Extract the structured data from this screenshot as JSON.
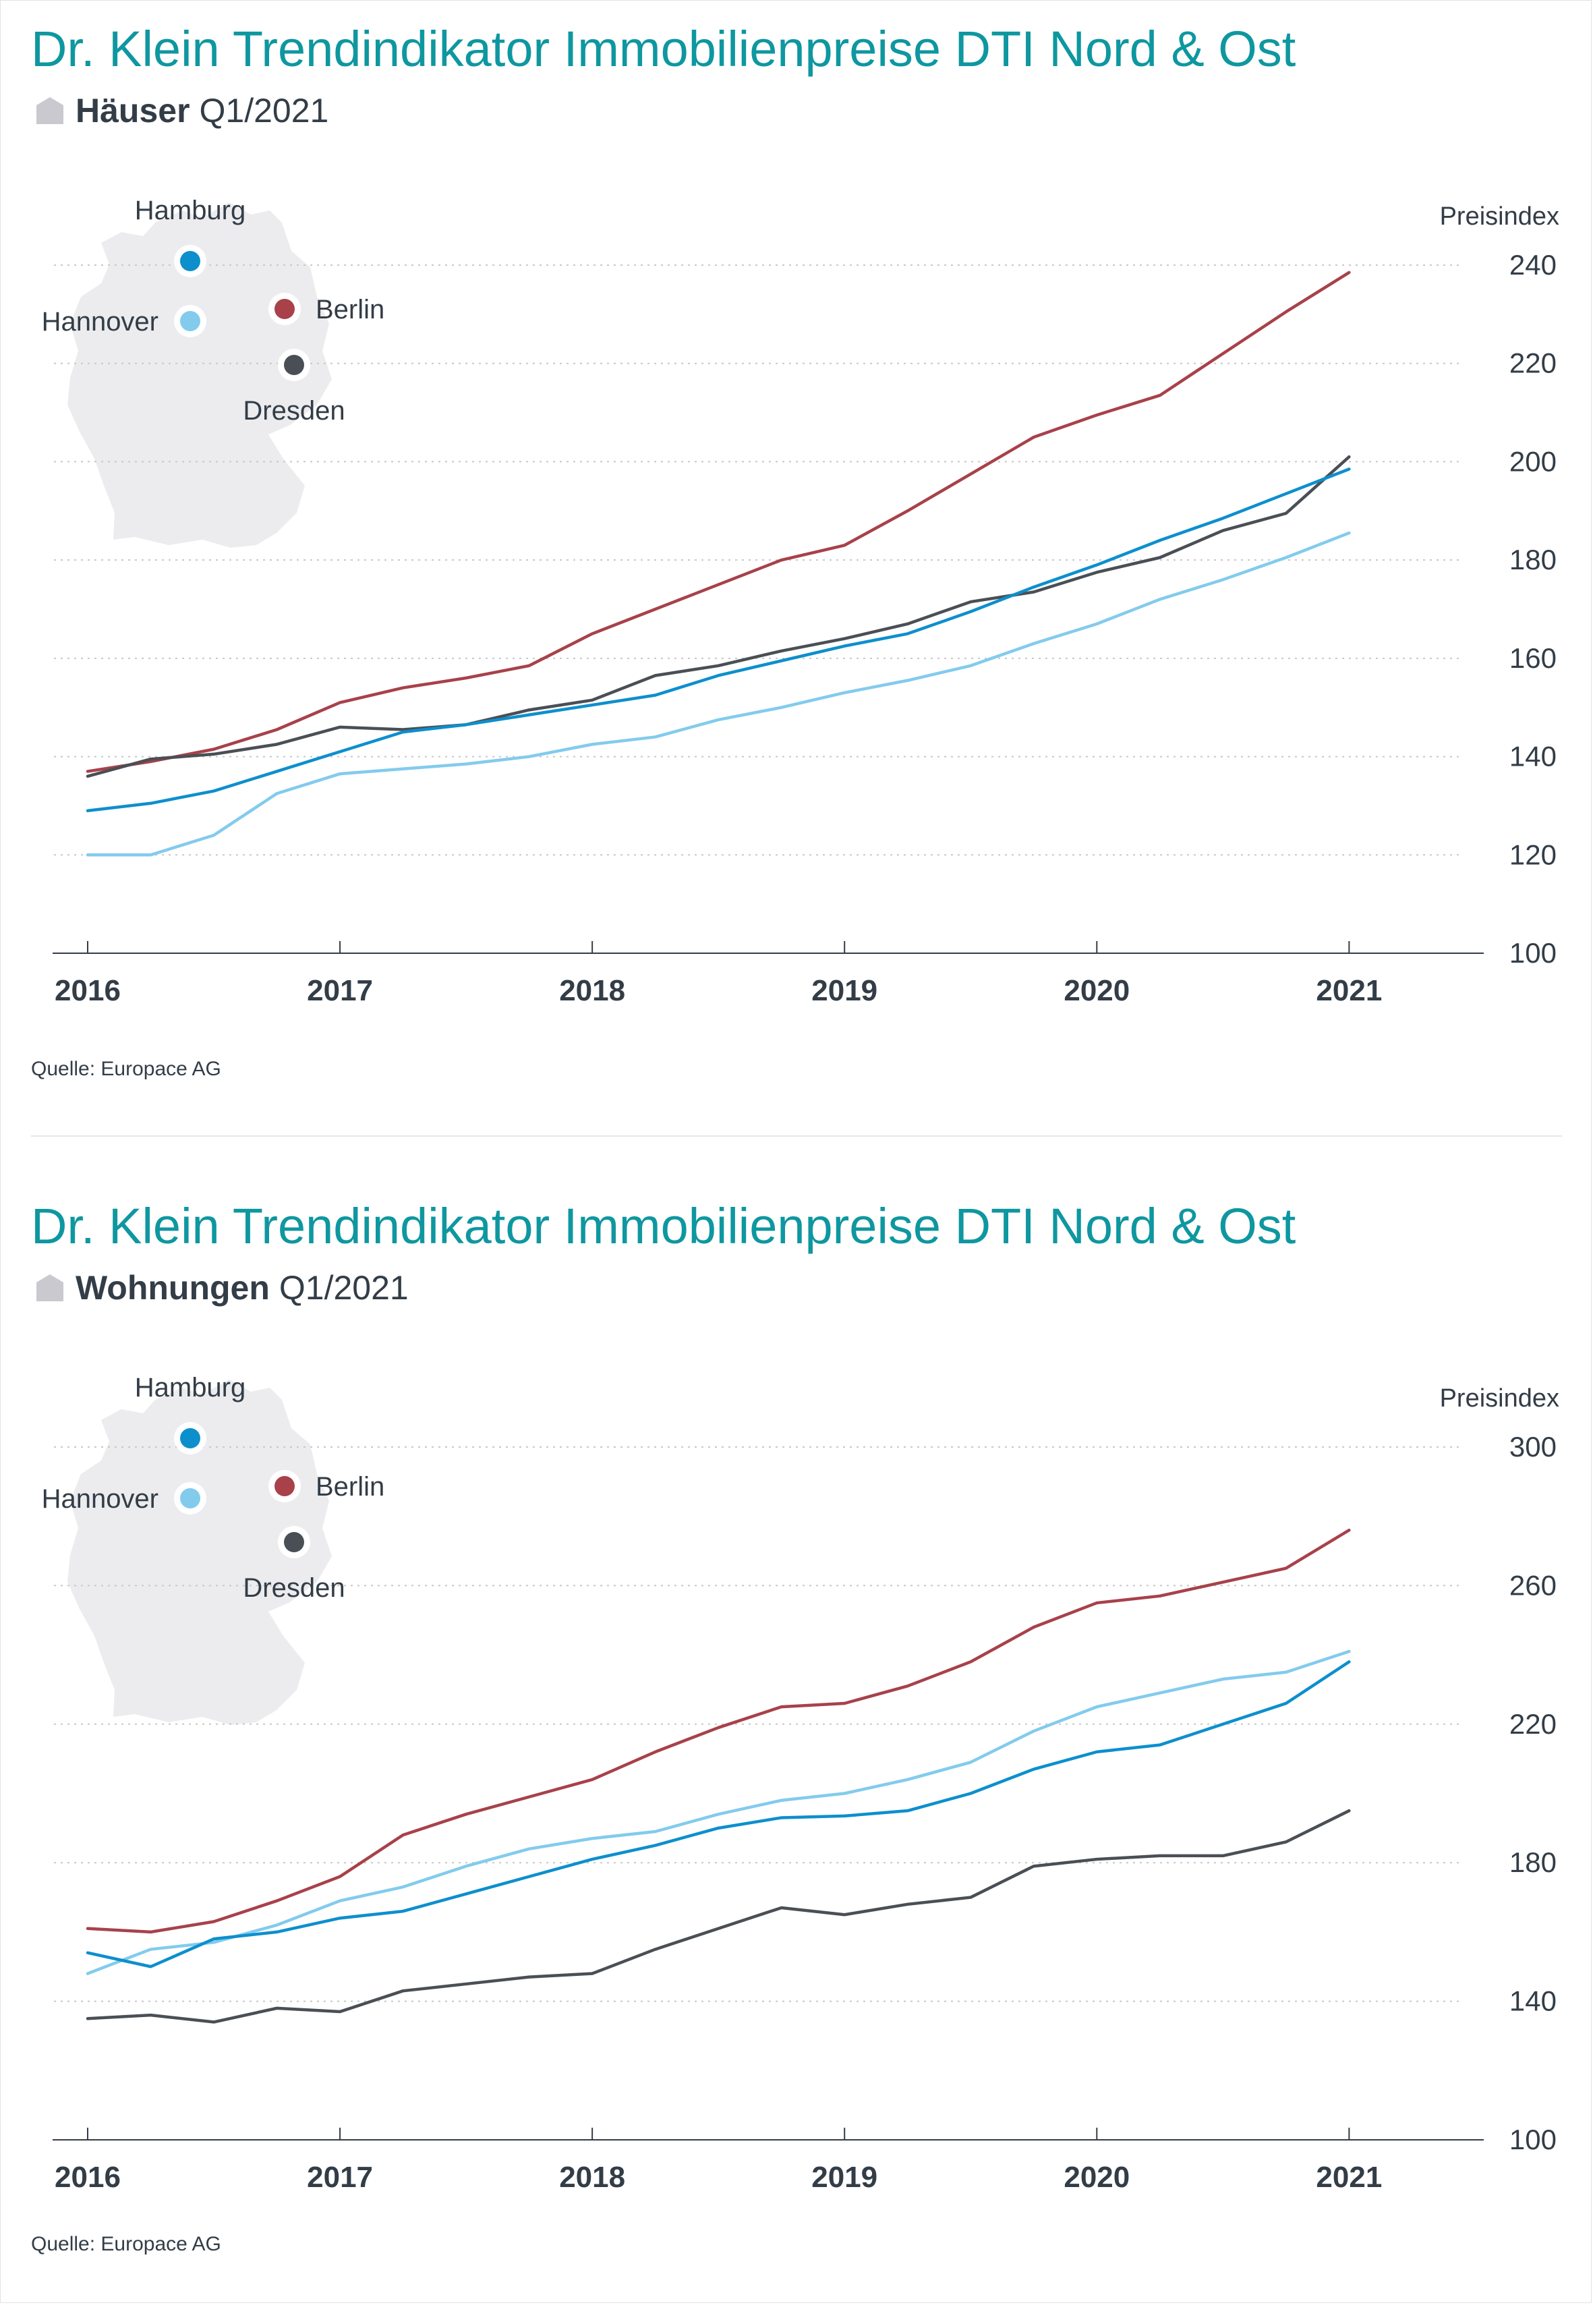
{
  "chart_data": [
    {
      "type": "line",
      "title": "Dr. Klein Trendindikator Immobilienpreise DTI Nord & Ost",
      "subtitle_kind": "Häuser",
      "subtitle_period": "Q1/2021",
      "ylabel": "Preisindex",
      "xlabel": "",
      "ylim": [
        100,
        240
      ],
      "yticks": [
        100,
        120,
        140,
        160,
        180,
        200,
        220,
        240
      ],
      "xlim": [
        2016,
        2021.4
      ],
      "xticks": [
        2016,
        2017,
        2018,
        2019,
        2020,
        2021
      ],
      "x": [
        2016.0,
        2016.25,
        2016.5,
        2016.75,
        2017.0,
        2017.25,
        2017.5,
        2017.75,
        2018.0,
        2018.25,
        2018.5,
        2018.75,
        2019.0,
        2019.25,
        2019.5,
        2019.75,
        2020.0,
        2020.25,
        2020.5,
        2020.75,
        2021.0,
        2021.25
      ],
      "series": [
        {
          "name": "Berlin",
          "color": "#a8414a",
          "values": [
            137,
            139,
            141.5,
            145.5,
            151,
            154,
            156,
            158.5,
            165,
            170,
            175,
            180,
            183,
            190,
            197.5,
            205,
            209.5,
            213.5,
            222,
            230.5,
            238.5,
            null
          ]
        },
        {
          "name": "Dresden",
          "color": "#4a4f55",
          "values": [
            136,
            139.5,
            140.5,
            142.5,
            146,
            145.5,
            146.5,
            149.5,
            151.5,
            156.5,
            158.5,
            161.5,
            164,
            167,
            171.5,
            173.5,
            177.5,
            180.5,
            186,
            189.5,
            201,
            null
          ]
        },
        {
          "name": "Hamburg",
          "color": "#0d8fcd",
          "values": [
            129,
            130.5,
            133,
            137,
            141,
            145,
            146.5,
            148.5,
            150.5,
            152.5,
            156.5,
            159.5,
            162.5,
            165,
            169.5,
            174.5,
            179,
            184,
            188.5,
            193.5,
            198.5,
            null
          ]
        },
        {
          "name": "Hannover",
          "color": "#82cbed",
          "values": [
            120,
            120,
            124,
            132.5,
            136.5,
            137.5,
            138.5,
            140,
            142.5,
            144,
            147.5,
            150,
            153,
            155.5,
            158.5,
            163,
            167,
            172,
            176,
            180.5,
            185.5,
            null
          ]
        }
      ],
      "legend": {
        "placement": "top-left",
        "entries": [
          "Hamburg",
          "Berlin",
          "Hannover",
          "Dresden"
        ]
      },
      "grid": true,
      "source": "Quelle: Europace AG"
    },
    {
      "type": "line",
      "title": "Dr. Klein Trendindikator Immobilienpreise DTI Nord & Ost",
      "subtitle_kind": "Wohnungen",
      "subtitle_period": "Q1/2021",
      "ylabel": "Preisindex",
      "xlabel": "",
      "ylim": [
        100,
        300
      ],
      "yticks": [
        100,
        140,
        180,
        220,
        260,
        300
      ],
      "xlim": [
        2016,
        2021.4
      ],
      "xticks": [
        2016,
        2017,
        2018,
        2019,
        2020,
        2021
      ],
      "x": [
        2016.0,
        2016.25,
        2016.5,
        2016.75,
        2017.0,
        2017.25,
        2017.5,
        2017.75,
        2018.0,
        2018.25,
        2018.5,
        2018.75,
        2019.0,
        2019.25,
        2019.5,
        2019.75,
        2020.0,
        2020.25,
        2020.5,
        2020.75,
        2021.0,
        2021.25
      ],
      "series": [
        {
          "name": "Berlin",
          "color": "#a8414a",
          "values": [
            161,
            160,
            163,
            169,
            176,
            188,
            194,
            199,
            204,
            212,
            219,
            225,
            226,
            231,
            238,
            248,
            255,
            257,
            261,
            265,
            276,
            null
          ]
        },
        {
          "name": "Hannover",
          "color": "#82cbed",
          "values": [
            148,
            155,
            157,
            162,
            169,
            173,
            179,
            184,
            187,
            189,
            194,
            198,
            200,
            204,
            209,
            218,
            225,
            229,
            233,
            235,
            241,
            null
          ]
        },
        {
          "name": "Hamburg",
          "color": "#0d8fcd",
          "values": [
            154,
            150,
            158,
            160,
            164,
            166,
            171,
            176,
            181,
            185,
            190,
            193,
            193.5,
            195,
            200,
            207,
            212,
            214,
            220,
            226,
            238,
            null
          ]
        },
        {
          "name": "Dresden",
          "color": "#4a4f55",
          "values": [
            135,
            136,
            134,
            138,
            137,
            143,
            145,
            147,
            148,
            155,
            161,
            167,
            165,
            168,
            170,
            179,
            181,
            182,
            182,
            186,
            195,
            null
          ]
        }
      ],
      "legend": {
        "placement": "top-left",
        "entries": [
          "Hamburg",
          "Berlin",
          "Hannover",
          "Dresden"
        ]
      },
      "grid": true,
      "source": "Quelle: Europace AG"
    }
  ]
}
